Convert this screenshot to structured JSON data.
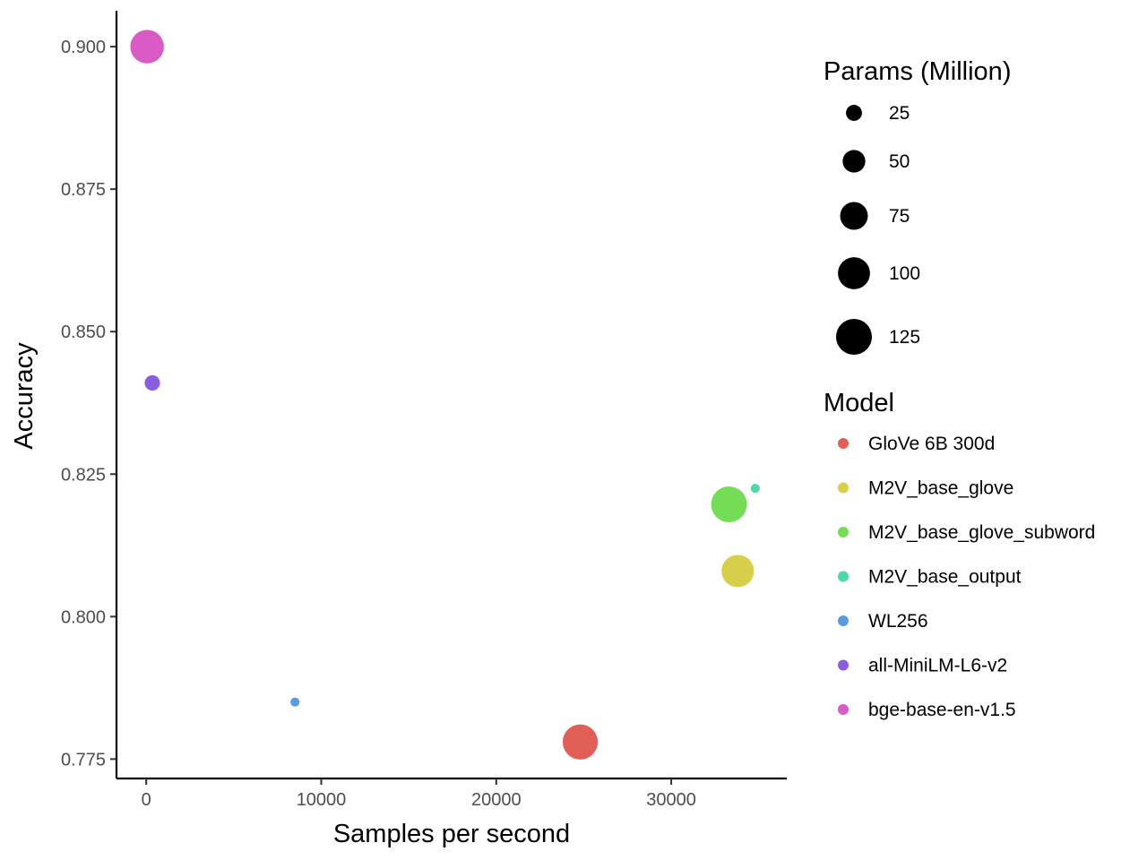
{
  "chart_data": {
    "type": "scatter",
    "title": "",
    "xlabel": "Samples per second",
    "ylabel": "Accuracy",
    "xlim": [
      -1700,
      36600
    ],
    "ylim": [
      0.7716,
      0.9063
    ],
    "x_ticks": [
      0,
      10000,
      20000,
      30000
    ],
    "y_ticks": [
      0.775,
      0.8,
      0.825,
      0.85,
      0.875,
      0.9
    ],
    "y_tick_labels": [
      "0.775",
      "0.800",
      "0.825",
      "0.850",
      "0.875",
      "0.900"
    ],
    "grid": false,
    "legend_position": "right",
    "size_legend": {
      "title": "Params (Million)",
      "values": [
        25,
        50,
        75,
        100,
        125
      ],
      "color": "#000000"
    },
    "color_legend": {
      "title": "Model"
    },
    "series": [
      {
        "name": "GloVe 6B 300d",
        "color": "#E06058",
        "points": [
          {
            "x": 24800,
            "y": 0.778,
            "params": 120
          }
        ]
      },
      {
        "name": "M2V_base_glove",
        "color": "#D7CE4B",
        "points": [
          {
            "x": 33800,
            "y": 0.808,
            "params": 102
          }
        ]
      },
      {
        "name": "M2V_base_glove_subword",
        "color": "#74DC55",
        "points": [
          {
            "x": 33300,
            "y": 0.8197,
            "params": 125
          }
        ]
      },
      {
        "name": "M2V_base_output",
        "color": "#4DD9A6",
        "points": [
          {
            "x": 34800,
            "y": 0.8225,
            "params": 8
          }
        ]
      },
      {
        "name": "WL256",
        "color": "#5A9BDD",
        "points": [
          {
            "x": 8500,
            "y": 0.785,
            "params": 8
          }
        ]
      },
      {
        "name": "all-MiniLM-L6-v2",
        "color": "#8A5CDF",
        "points": [
          {
            "x": 350,
            "y": 0.841,
            "params": 23
          }
        ]
      },
      {
        "name": "bge-base-en-v1.5",
        "color": "#DB5BC6",
        "points": [
          {
            "x": 50,
            "y": 0.9,
            "params": 110
          }
        ]
      }
    ]
  }
}
